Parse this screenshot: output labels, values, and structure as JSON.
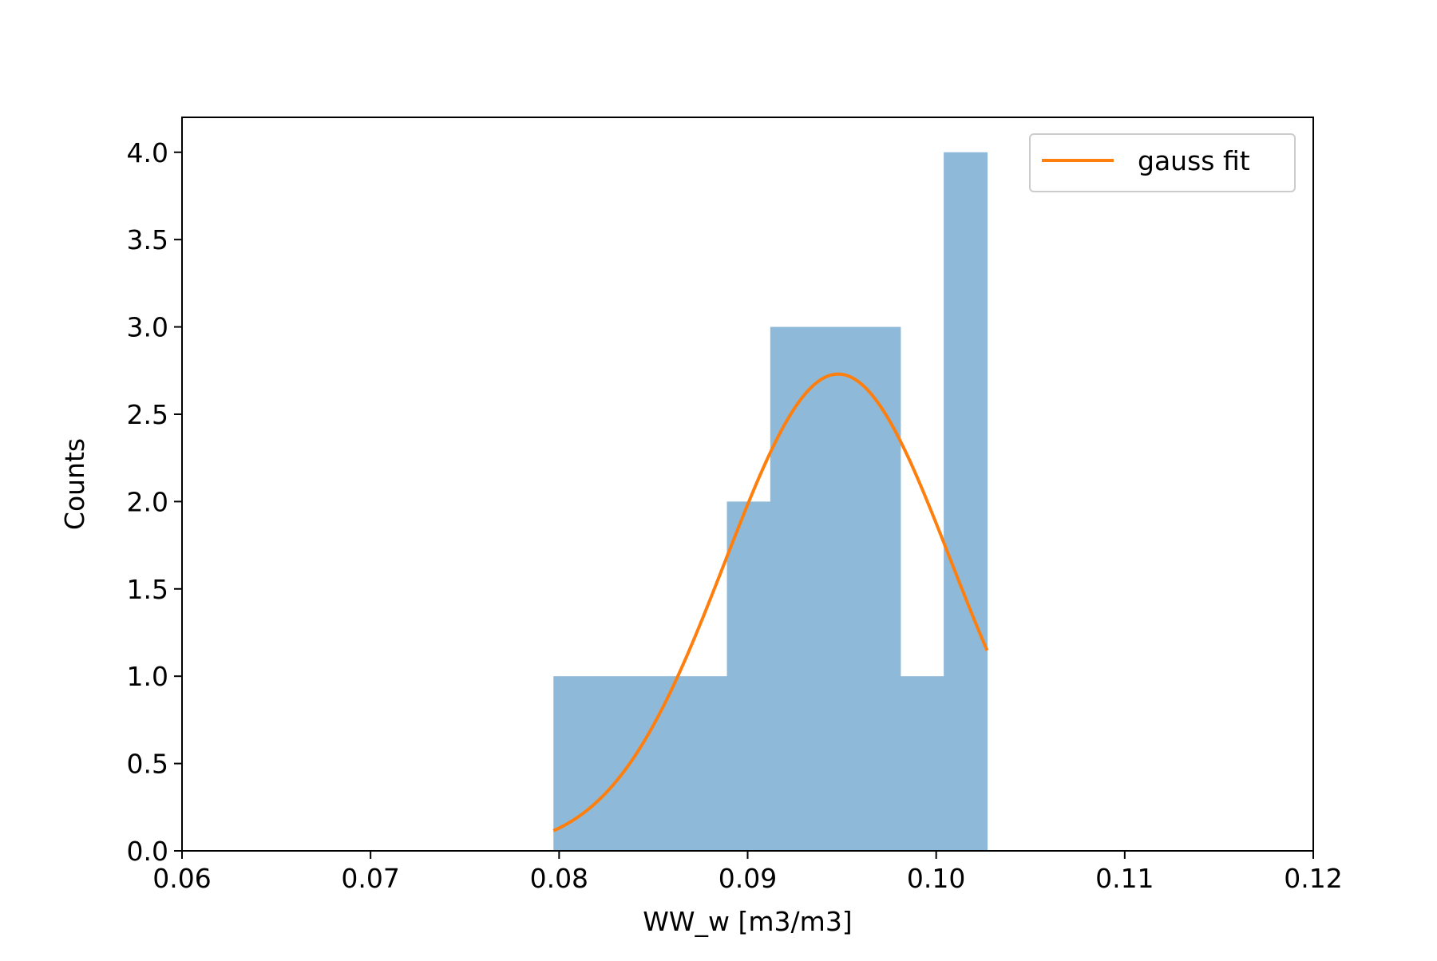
{
  "chart_data": {
    "type": "bar",
    "title": "",
    "xlabel": "WW_w [m3/m3]",
    "ylabel": "Counts",
    "xlim": [
      0.06,
      0.12
    ],
    "ylim": [
      0.0,
      4.2
    ],
    "xticks": [
      "0.06",
      "0.07",
      "0.08",
      "0.09",
      "0.10",
      "0.11",
      "0.12"
    ],
    "yticks": [
      "0.0",
      "0.5",
      "1.0",
      "1.5",
      "2.0",
      "2.5",
      "3.0",
      "3.5",
      "4.0"
    ],
    "grid": false,
    "legend_position": "top-right",
    "histogram": {
      "bins": [
        {
          "x0": 0.0797,
          "x1": 0.082,
          "count": 1
        },
        {
          "x0": 0.082,
          "x1": 0.0843,
          "count": 1
        },
        {
          "x0": 0.0843,
          "x1": 0.0866,
          "count": 1
        },
        {
          "x0": 0.0866,
          "x1": 0.0889,
          "count": 1
        },
        {
          "x0": 0.0889,
          "x1": 0.0912,
          "count": 2
        },
        {
          "x0": 0.0912,
          "x1": 0.0935,
          "count": 3
        },
        {
          "x0": 0.0935,
          "x1": 0.0958,
          "count": 3
        },
        {
          "x0": 0.0958,
          "x1": 0.0981,
          "count": 3
        },
        {
          "x0": 0.0981,
          "x1": 0.1004,
          "count": 1
        },
        {
          "x0": 0.1004,
          "x1": 0.1027,
          "count": 4
        }
      ],
      "color": "#8fb9d9"
    },
    "series": [
      {
        "name": "gauss fit",
        "color": "#ff7f0e",
        "model": "gaussian",
        "amplitude": 2.73,
        "mean": 0.0948,
        "sigma": 0.006,
        "x_range": [
          0.0797,
          0.1027
        ]
      }
    ]
  }
}
